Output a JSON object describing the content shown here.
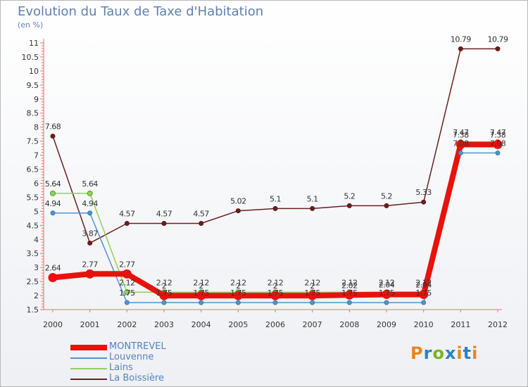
{
  "title": "Evolution du Taux de Taxe d'Habitation",
  "subtitle": "(en %)",
  "logo": {
    "text": "Proxiti",
    "colors": [
      "#e8861f",
      "#2f7fc3",
      "#7ab51d",
      "#2f7fc3",
      "#e8861f",
      "#2f7fc3",
      "#e8861f"
    ]
  },
  "chart_data": {
    "type": "line",
    "title": "Evolution du Taux de Taxe d'Habitation",
    "ylabel": "(en %)",
    "x": [
      "2000",
      "2001",
      "2002",
      "2003",
      "2004",
      "2005",
      "2006",
      "2007",
      "2008",
      "2009",
      "2010",
      "2011",
      "2012"
    ],
    "ylim": [
      1.5,
      11
    ],
    "yticks": [
      "1.5",
      "2",
      "2.5",
      "3",
      "3.5",
      "4",
      "4.5",
      "5",
      "5.5",
      "6",
      "6.5",
      "7",
      "7.5",
      "8",
      "8.5",
      "9",
      "9.5",
      "10",
      "10.5",
      "11"
    ],
    "grid": false,
    "legend_position": "bottom-left",
    "series": [
      {
        "name": "MONTREVEL",
        "color": "#e8120c",
        "values": [
          2.64,
          2.77,
          2.77,
          2,
          2,
          2,
          2,
          2,
          2.02,
          2.04,
          2.04,
          7.38,
          7.38
        ],
        "labels": [
          "2.64",
          "2.77",
          "2.77",
          "2",
          "2",
          "2",
          "2",
          "2",
          "2.02",
          "2.04",
          "2.04",
          "7.38",
          "7.38"
        ]
      },
      {
        "name": "Louvenne",
        "color": "#4f94cf",
        "values": [
          4.94,
          4.94,
          1.75,
          1.75,
          1.75,
          1.75,
          1.75,
          1.75,
          1.75,
          1.75,
          1.75,
          7.08,
          7.08
        ],
        "labels": [
          "4.94",
          "4.94",
          "1.75",
          "1.75",
          "1.75",
          "1.75",
          "1.75",
          "1.75",
          "1.75",
          "1.75",
          "1.75",
          "7.08",
          "7.08"
        ]
      },
      {
        "name": "Lains",
        "color": "#8fd15d",
        "values": [
          5.64,
          5.64,
          2.12,
          2.12,
          2.12,
          2.12,
          2.12,
          2.12,
          2.12,
          2.12,
          2.12,
          7.47,
          7.47
        ],
        "labels": [
          "5.64",
          "5.64",
          "2.12",
          "2.12",
          "2.12",
          "2.12",
          "2.12",
          "2.12",
          "2.12",
          "2.12",
          "2.12",
          "7.47",
          "7.47"
        ]
      },
      {
        "name": "La Boissière",
        "color": "#6b1f1f",
        "values": [
          7.68,
          3.87,
          4.57,
          4.57,
          4.57,
          5.02,
          5.1,
          5.1,
          5.2,
          5.2,
          5.33,
          10.79,
          10.79
        ],
        "labels": [
          "7.68",
          "3.87",
          "4.57",
          "4.57",
          "4.57",
          "5.02",
          "5.1",
          "5.1",
          "5.2",
          "5.2",
          "5.33",
          "10.79",
          "10.79"
        ]
      }
    ]
  },
  "legend": [
    {
      "label": "MONTREVEL",
      "color": "#e8120c"
    },
    {
      "label": "Louvenne",
      "color": "#4f94cf"
    },
    {
      "label": "Lains",
      "color": "#8fd15d"
    },
    {
      "label": "La Boissière",
      "color": "#6b1f1f"
    }
  ]
}
